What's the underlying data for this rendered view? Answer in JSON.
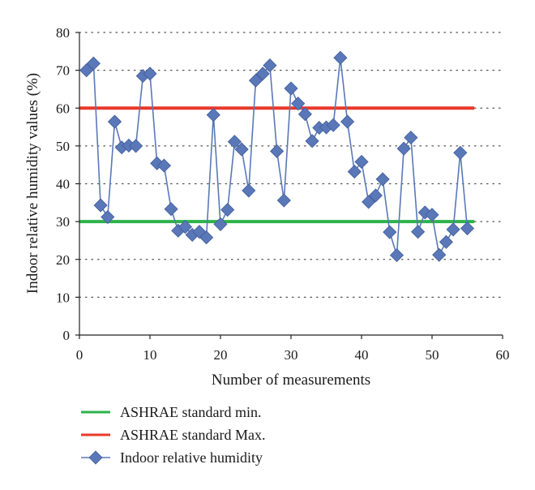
{
  "chart_data": {
    "type": "line",
    "xlabel": "Number of measurements",
    "ylabel": "Indoor relative humidity values (%)",
    "xlim": [
      0,
      60
    ],
    "ylim": [
      0,
      80
    ],
    "xticks": [
      0,
      10,
      20,
      30,
      40,
      50,
      60
    ],
    "yticks": [
      0,
      10,
      20,
      30,
      40,
      50,
      60,
      70,
      80
    ],
    "grid": "horizontal dotted",
    "legend_position": "bottom",
    "series": [
      {
        "name": "ASHRAE standard min.",
        "kind": "reference-line",
        "color": "#2db34a",
        "x": [
          0,
          56
        ],
        "values": [
          30,
          30
        ]
      },
      {
        "name": "ASHRAE standard Max.",
        "kind": "reference-line",
        "color": "#e8392a",
        "x": [
          0,
          56
        ],
        "values": [
          60,
          60
        ]
      },
      {
        "name": "Indoor relative humidity",
        "kind": "line-marker",
        "marker": "diamond",
        "color": "#5a78b8",
        "x": [
          1,
          2,
          3,
          4,
          5,
          6,
          7,
          8,
          9,
          10,
          11,
          12,
          13,
          14,
          15,
          16,
          17,
          18,
          19,
          20,
          21,
          22,
          23,
          24,
          25,
          26,
          27,
          28,
          29,
          30,
          31,
          32,
          33,
          34,
          35,
          36,
          37,
          38,
          39,
          40,
          41,
          42,
          43,
          44,
          45,
          46,
          47,
          48,
          49,
          50,
          51,
          52,
          53,
          54,
          55
        ],
        "values": [
          70,
          71.8,
          34.3,
          31.2,
          56.4,
          49.6,
          50.1,
          50,
          68.5,
          69.1,
          45.4,
          44.8,
          33.3,
          27.6,
          28.6,
          26.5,
          27.3,
          25.8,
          58.2,
          29.3,
          33.1,
          51.1,
          49.1,
          38.2,
          67.3,
          69.1,
          71.3,
          48.6,
          35.6,
          65.2,
          61.2,
          58.4,
          51.3,
          54.8,
          54.9,
          55.5,
          73.3,
          56.4,
          43.2,
          45.8,
          35.2,
          36.9,
          41.2,
          27.2,
          21.1,
          49.3,
          52.2,
          27.3,
          32.4,
          31.8,
          21.2,
          24.6,
          27.9,
          48.2,
          28.2
        ]
      }
    ]
  }
}
